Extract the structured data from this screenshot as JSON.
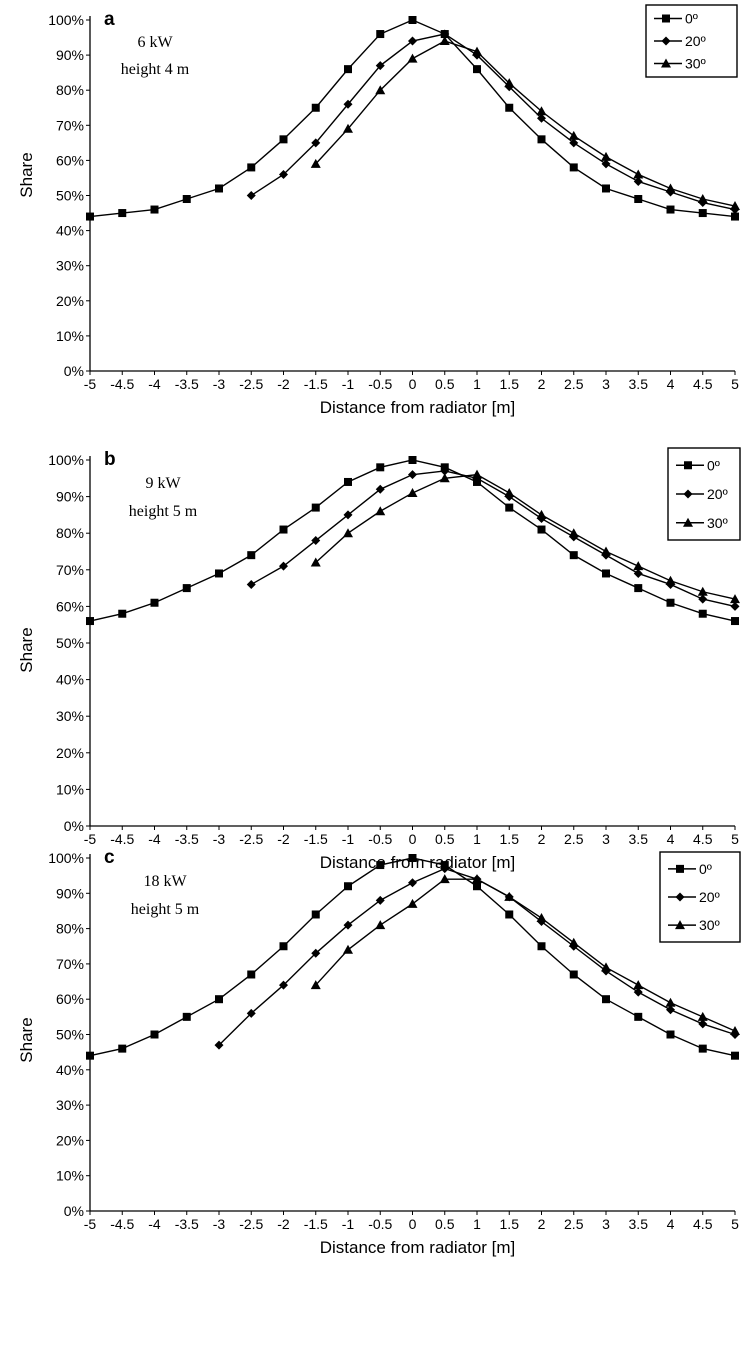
{
  "chart_data": [
    {
      "type": "line",
      "panel_label": "a",
      "annotation_lines": [
        "6 kW",
        "height 4 m"
      ],
      "xlabel": "Distance from radiator [m]",
      "ylabel": "Share",
      "xlim": [
        -5,
        5
      ],
      "ylim": [
        0,
        100
      ],
      "x_ticks": [
        "-5",
        "-4.5",
        "-4",
        "-3.5",
        "-3",
        "-2.5",
        "-2",
        "-1.5",
        "-1",
        "-0.5",
        "0",
        "0.5",
        "1",
        "1.5",
        "2",
        "2.5",
        "3",
        "3.5",
        "4",
        "4.5",
        "5"
      ],
      "y_ticks": [
        "0%",
        "10%",
        "20%",
        "30%",
        "40%",
        "50%",
        "60%",
        "70%",
        "80%",
        "90%",
        "100%"
      ],
      "legend_position": "top-right",
      "series": [
        {
          "name": "0º",
          "marker": "square",
          "x": [
            -5,
            -4.5,
            -4,
            -3.5,
            -3,
            -2.5,
            -2,
            -1.5,
            -1,
            -0.5,
            0,
            0.5,
            1,
            1.5,
            2,
            2.5,
            3,
            3.5,
            4,
            4.5,
            5
          ],
          "y": [
            44,
            45,
            46,
            49,
            52,
            58,
            66,
            75,
            86,
            96,
            100,
            96,
            86,
            75,
            66,
            58,
            52,
            49,
            46,
            45,
            44
          ]
        },
        {
          "name": "20º",
          "marker": "diamond",
          "x": [
            -2.5,
            -2,
            -1.5,
            -1,
            -0.5,
            0,
            0.5,
            1,
            1.5,
            2,
            2.5,
            3,
            3.5,
            4,
            4.5,
            5
          ],
          "y": [
            50,
            56,
            65,
            76,
            87,
            94,
            96,
            90,
            81,
            72,
            65,
            59,
            54,
            51,
            48,
            46
          ]
        },
        {
          "name": "30º",
          "marker": "triangle",
          "x": [
            -1.5,
            -1,
            -0.5,
            0,
            0.5,
            1,
            1.5,
            2,
            2.5,
            3,
            3.5,
            4,
            4.5,
            5
          ],
          "y": [
            59,
            69,
            80,
            89,
            94,
            91,
            82,
            74,
            67,
            61,
            56,
            52,
            49,
            47
          ]
        }
      ]
    },
    {
      "type": "line",
      "panel_label": "b",
      "annotation_lines": [
        "9 kW",
        "height 5 m"
      ],
      "xlabel": "Distance from radiator [m]",
      "ylabel": "Share",
      "xlim": [
        -5,
        5
      ],
      "ylim": [
        0,
        100
      ],
      "x_ticks": [
        "-5",
        "-4.5",
        "-4",
        "-3.5",
        "-3",
        "-2.5",
        "-2",
        "-1.5",
        "-1",
        "-0.5",
        "0",
        "0.5",
        "1",
        "1.5",
        "2",
        "2.5",
        "3",
        "3.5",
        "4",
        "4.5",
        "5"
      ],
      "y_ticks": [
        "0%",
        "10%",
        "20%",
        "30%",
        "40%",
        "50%",
        "60%",
        "70%",
        "80%",
        "90%",
        "100%"
      ],
      "legend_position": "top-right",
      "series": [
        {
          "name": "0º",
          "marker": "square",
          "x": [
            -5,
            -4.5,
            -4,
            -3.5,
            -3,
            -2.5,
            -2,
            -1.5,
            -1,
            -0.5,
            0,
            0.5,
            1,
            1.5,
            2,
            2.5,
            3,
            3.5,
            4,
            4.5,
            5
          ],
          "y": [
            56,
            58,
            61,
            65,
            69,
            74,
            81,
            87,
            94,
            98,
            100,
            98,
            94,
            87,
            81,
            74,
            69,
            65,
            61,
            58,
            56
          ]
        },
        {
          "name": "20º",
          "marker": "diamond",
          "x": [
            -2.5,
            -2,
            -1.5,
            -1,
            -0.5,
            0,
            0.5,
            1,
            1.5,
            2,
            2.5,
            3,
            3.5,
            4,
            4.5,
            5
          ],
          "y": [
            66,
            71,
            78,
            85,
            92,
            96,
            97,
            95,
            90,
            84,
            79,
            74,
            69,
            66,
            62,
            60
          ]
        },
        {
          "name": "30º",
          "marker": "triangle",
          "x": [
            -1.5,
            -1,
            -0.5,
            0,
            0.5,
            1,
            1.5,
            2,
            2.5,
            3,
            3.5,
            4,
            4.5,
            5
          ],
          "y": [
            72,
            80,
            86,
            91,
            95,
            96,
            91,
            85,
            80,
            75,
            71,
            67,
            64,
            62
          ]
        }
      ]
    },
    {
      "type": "line",
      "panel_label": "c",
      "annotation_lines": [
        "18 kW",
        "height 5 m"
      ],
      "xlabel": "Distance from radiator [m]",
      "ylabel": "Share",
      "xlim": [
        -5,
        5
      ],
      "ylim": [
        0,
        100
      ],
      "x_ticks": [
        "-5",
        "-4.5",
        "-4",
        "-3.5",
        "-3",
        "-2.5",
        "-2",
        "-1.5",
        "-1",
        "-0.5",
        "0",
        "0.5",
        "1",
        "1.5",
        "2",
        "2.5",
        "3",
        "3.5",
        "4",
        "4.5",
        "5"
      ],
      "y_ticks": [
        "0%",
        "10%",
        "20%",
        "30%",
        "40%",
        "50%",
        "60%",
        "70%",
        "80%",
        "90%",
        "100%"
      ],
      "legend_position": "top-right",
      "series": [
        {
          "name": "0º",
          "marker": "square",
          "x": [
            -5,
            -4.5,
            -4,
            -3.5,
            -3,
            -2.5,
            -2,
            -1.5,
            -1,
            -0.5,
            0,
            0.5,
            1,
            1.5,
            2,
            2.5,
            3,
            3.5,
            4,
            4.5,
            5
          ],
          "y": [
            44,
            46,
            50,
            55,
            60,
            67,
            75,
            84,
            92,
            98,
            100,
            98,
            92,
            84,
            75,
            67,
            60,
            55,
            50,
            46,
            44
          ]
        },
        {
          "name": "20º",
          "marker": "diamond",
          "x": [
            -3,
            -2.5,
            -2,
            -1.5,
            -1,
            -0.5,
            0,
            0.5,
            1,
            1.5,
            2,
            2.5,
            3,
            3.5,
            4,
            4.5,
            5
          ],
          "y": [
            47,
            56,
            64,
            73,
            81,
            88,
            93,
            97,
            94,
            89,
            82,
            75,
            68,
            62,
            57,
            53,
            50
          ]
        },
        {
          "name": "30º",
          "marker": "triangle",
          "x": [
            -1.5,
            -1,
            -0.5,
            0,
            0.5,
            1,
            1.5,
            2,
            2.5,
            3,
            3.5,
            4,
            4.5,
            5
          ],
          "y": [
            64,
            74,
            81,
            87,
            94,
            94,
            89,
            83,
            76,
            69,
            64,
            59,
            55,
            51
          ]
        }
      ]
    }
  ]
}
